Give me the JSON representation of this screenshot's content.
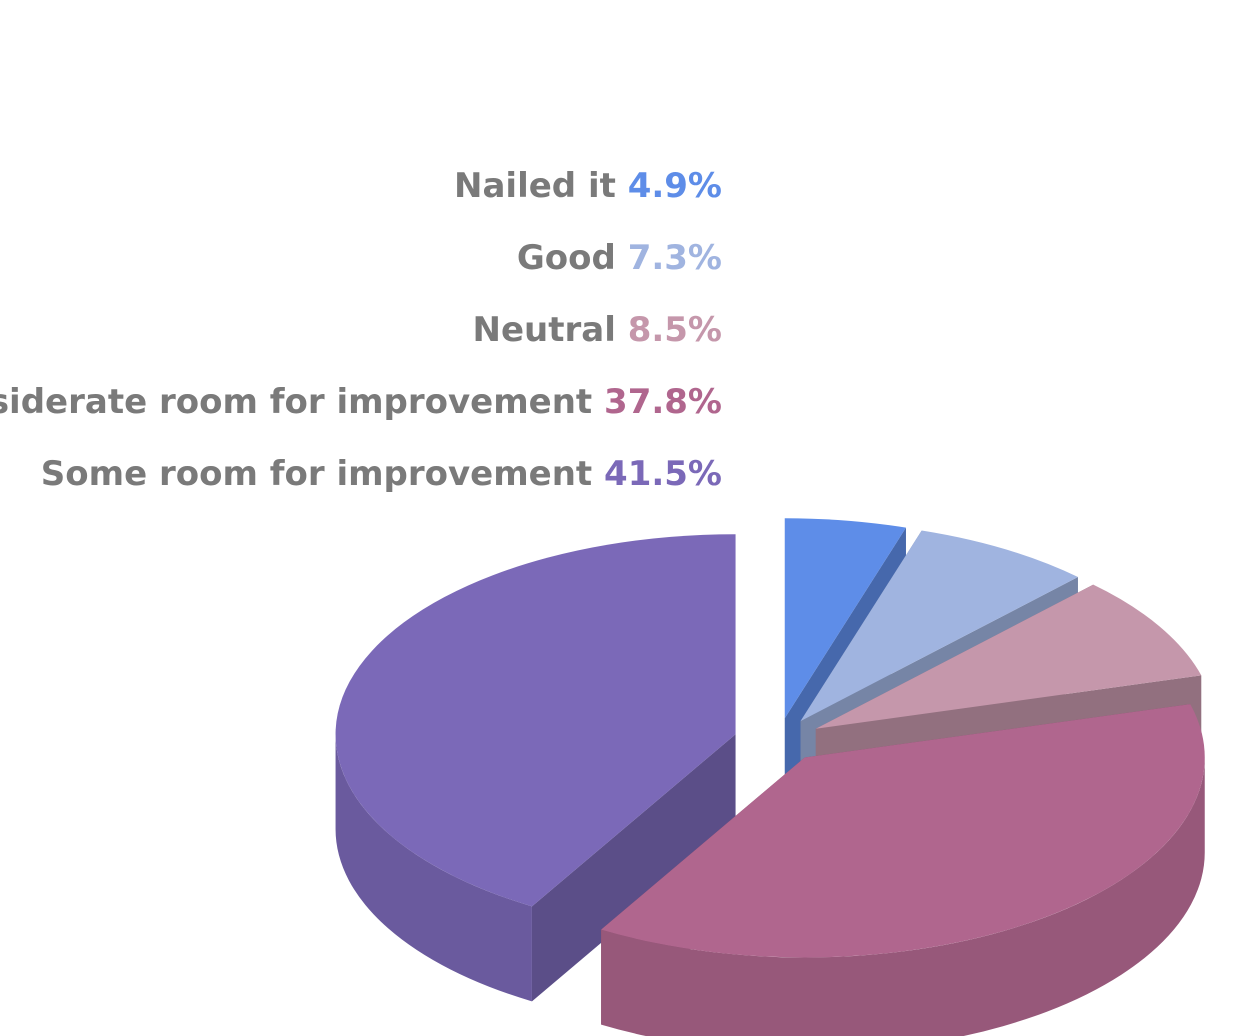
{
  "chart_data": {
    "type": "pie",
    "title": "",
    "style": "3d-exploded",
    "legend_position": "left",
    "series": [
      {
        "name": "Nailed it",
        "value": 4.9,
        "value_label": "4.9%",
        "color": "#5e8de8"
      },
      {
        "name": "Good",
        "value": 7.3,
        "value_label": "7.3%",
        "color": "#a0b4e0"
      },
      {
        "name": "Neutral",
        "value": 8.5,
        "value_label": "8.5%",
        "color": "#c597ab"
      },
      {
        "name": "Considerate room for improvement",
        "value": 37.8,
        "value_label": "37.8%",
        "color": "#b0668e"
      },
      {
        "name": "Some room for improvement",
        "value": 41.5,
        "value_label": "41.5%",
        "color": "#7b69b8"
      }
    ]
  }
}
